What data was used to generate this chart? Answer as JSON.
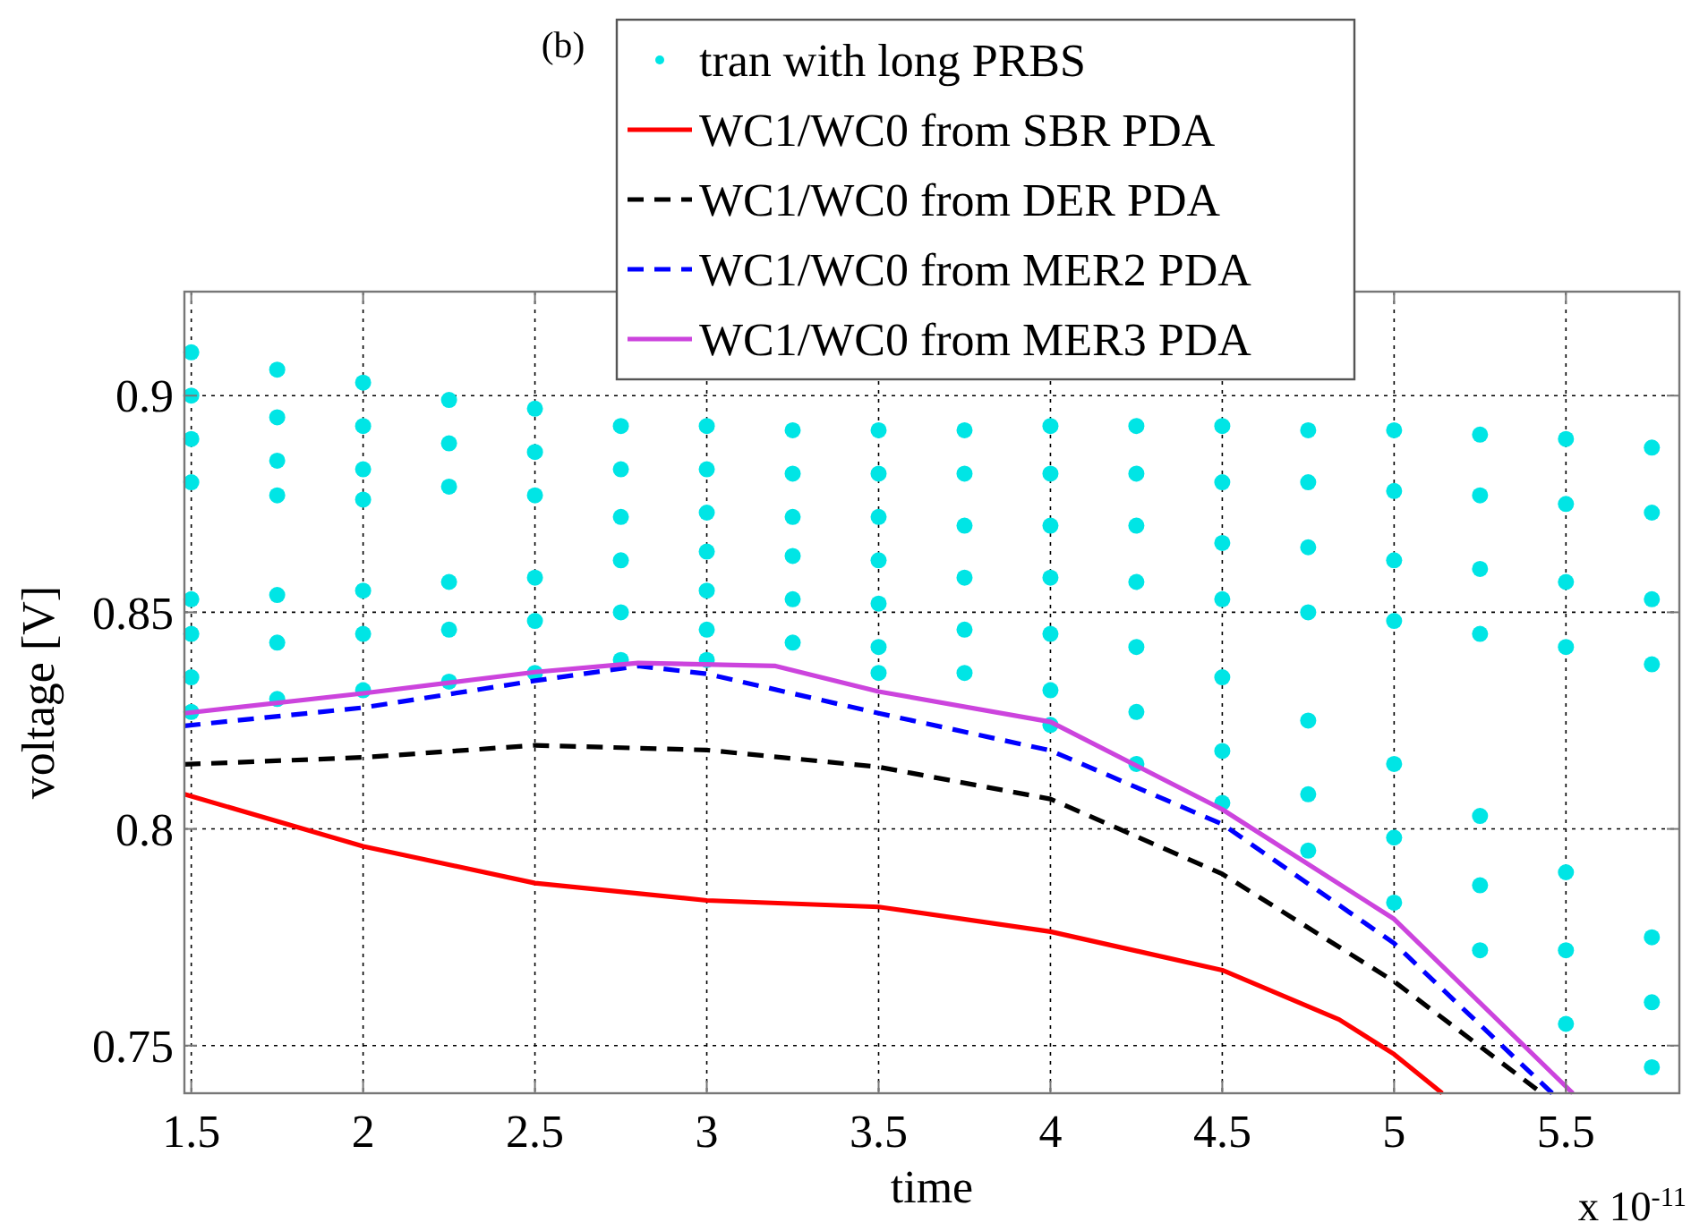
{
  "chart_data": {
    "type": "scatter",
    "title": "(b)",
    "xlabel": "time",
    "ylabel": "voltage [V]",
    "xlim": [
      1.48,
      5.83
    ],
    "ylim": [
      0.739,
      0.924
    ],
    "xticks": [
      1.5,
      2,
      2.5,
      3,
      3.5,
      4,
      4.5,
      5,
      5.5
    ],
    "yticks": [
      0.75,
      0.8,
      0.85,
      0.9
    ],
    "grid": true,
    "legend": "top",
    "annotations": [
      "x 10$^{-11}$"
    ],
    "series": [
      {
        "name": "tran with long PRBS",
        "color": "#00e5e5",
        "marker": "circle",
        "x": [
          1.5,
          1.5,
          1.5,
          1.5,
          1.5,
          1.5,
          1.5,
          1.5,
          1.75,
          1.75,
          1.75,
          1.75,
          1.75,
          1.75,
          1.75,
          2,
          2,
          2,
          2,
          2,
          2,
          2,
          2.25,
          2.25,
          2.25,
          2.25,
          2.25,
          2.25,
          2.5,
          2.5,
          2.5,
          2.5,
          2.5,
          2.5,
          2.75,
          2.75,
          2.75,
          2.75,
          2.75,
          2.75,
          3,
          3,
          3,
          3,
          3,
          3,
          3,
          3.25,
          3.25,
          3.25,
          3.25,
          3.25,
          3.25,
          3.5,
          3.5,
          3.5,
          3.5,
          3.5,
          3.5,
          3.5,
          3.75,
          3.75,
          3.75,
          3.75,
          3.75,
          3.75,
          4,
          4,
          4,
          4,
          4,
          4,
          4,
          4.25,
          4.25,
          4.25,
          4.25,
          4.25,
          4.25,
          4.25,
          4.5,
          4.5,
          4.5,
          4.5,
          4.5,
          4.5,
          4.5,
          4.75,
          4.75,
          4.75,
          4.75,
          4.75,
          4.75,
          4.75,
          5,
          5,
          5,
          5,
          5,
          5,
          5,
          5.25,
          5.25,
          5.25,
          5.25,
          5.25,
          5.25,
          5.25,
          5.5,
          5.5,
          5.5,
          5.5,
          5.5,
          5.5,
          5.5,
          5.75,
          5.75,
          5.75,
          5.75,
          5.75,
          5.75,
          5.75
        ],
        "values": [
          0.91,
          0.9,
          0.89,
          0.88,
          0.853,
          0.845,
          0.835,
          0.827,
          0.906,
          0.895,
          0.885,
          0.877,
          0.854,
          0.843,
          0.83,
          0.903,
          0.893,
          0.883,
          0.876,
          0.855,
          0.845,
          0.832,
          0.899,
          0.889,
          0.879,
          0.857,
          0.846,
          0.834,
          0.897,
          0.887,
          0.877,
          0.858,
          0.848,
          0.836,
          0.893,
          0.883,
          0.872,
          0.862,
          0.85,
          0.839,
          0.893,
          0.883,
          0.873,
          0.864,
          0.855,
          0.846,
          0.839,
          0.892,
          0.882,
          0.872,
          0.863,
          0.853,
          0.843,
          0.892,
          0.882,
          0.872,
          0.862,
          0.852,
          0.842,
          0.836,
          0.892,
          0.882,
          0.87,
          0.858,
          0.846,
          0.836,
          0.893,
          0.882,
          0.87,
          0.858,
          0.845,
          0.832,
          0.824,
          0.893,
          0.882,
          0.87,
          0.857,
          0.842,
          0.827,
          0.815,
          0.893,
          0.88,
          0.866,
          0.853,
          0.835,
          0.818,
          0.806,
          0.892,
          0.88,
          0.865,
          0.85,
          0.825,
          0.808,
          0.795,
          0.892,
          0.878,
          0.862,
          0.848,
          0.815,
          0.798,
          0.783,
          0.891,
          0.877,
          0.86,
          0.845,
          0.803,
          0.787,
          0.772,
          0.89,
          0.875,
          0.857,
          0.842,
          0.79,
          0.772,
          0.755,
          0.888,
          0.873,
          0.853,
          0.838,
          0.775,
          0.76,
          0.745
        ]
      },
      {
        "type": "line",
        "name": "WC1/WC0 from SBR PDA",
        "color": "#ff0000",
        "line_style": "solid",
        "x": [
          1.48,
          2,
          2.5,
          3,
          3.5,
          4,
          4.5,
          4.84,
          5,
          5.14
        ],
        "values": [
          0.808,
          0.796,
          0.7875,
          0.7835,
          0.782,
          0.7763,
          0.7674,
          0.756,
          0.748,
          0.739
        ]
      },
      {
        "type": "line",
        "name": "WC1/WC0 from DER PDA",
        "color": "#000000",
        "line_style": "dashed",
        "x": [
          1.48,
          2,
          2.5,
          3,
          3.5,
          4,
          4.5,
          5,
          5.43
        ],
        "values": [
          0.8149,
          0.8165,
          0.8193,
          0.8182,
          0.8143,
          0.8069,
          0.7896,
          0.7648,
          0.739
        ]
      },
      {
        "type": "line",
        "name": "WC1/WC0 from MER2 PDA",
        "color": "#0000ff",
        "line_style": "dashed",
        "x": [
          1.48,
          2,
          2.5,
          2.8,
          3,
          3.5,
          4,
          4.5,
          5,
          5.46
        ],
        "values": [
          0.8238,
          0.828,
          0.8342,
          0.8376,
          0.8358,
          0.8267,
          0.8181,
          0.8011,
          0.7736,
          0.739
        ]
      },
      {
        "type": "line",
        "name": "WC1/WC0 from MER3 PDA",
        "color": "#cc44dd",
        "line_style": "solid",
        "x": [
          1.48,
          2,
          2.5,
          2.8,
          3.2,
          3.5,
          4,
          4.5,
          5,
          5.52
        ],
        "values": [
          0.8267,
          0.8313,
          0.8362,
          0.8383,
          0.8376,
          0.8317,
          0.8247,
          0.8045,
          0.7792,
          0.739
        ]
      }
    ]
  }
}
